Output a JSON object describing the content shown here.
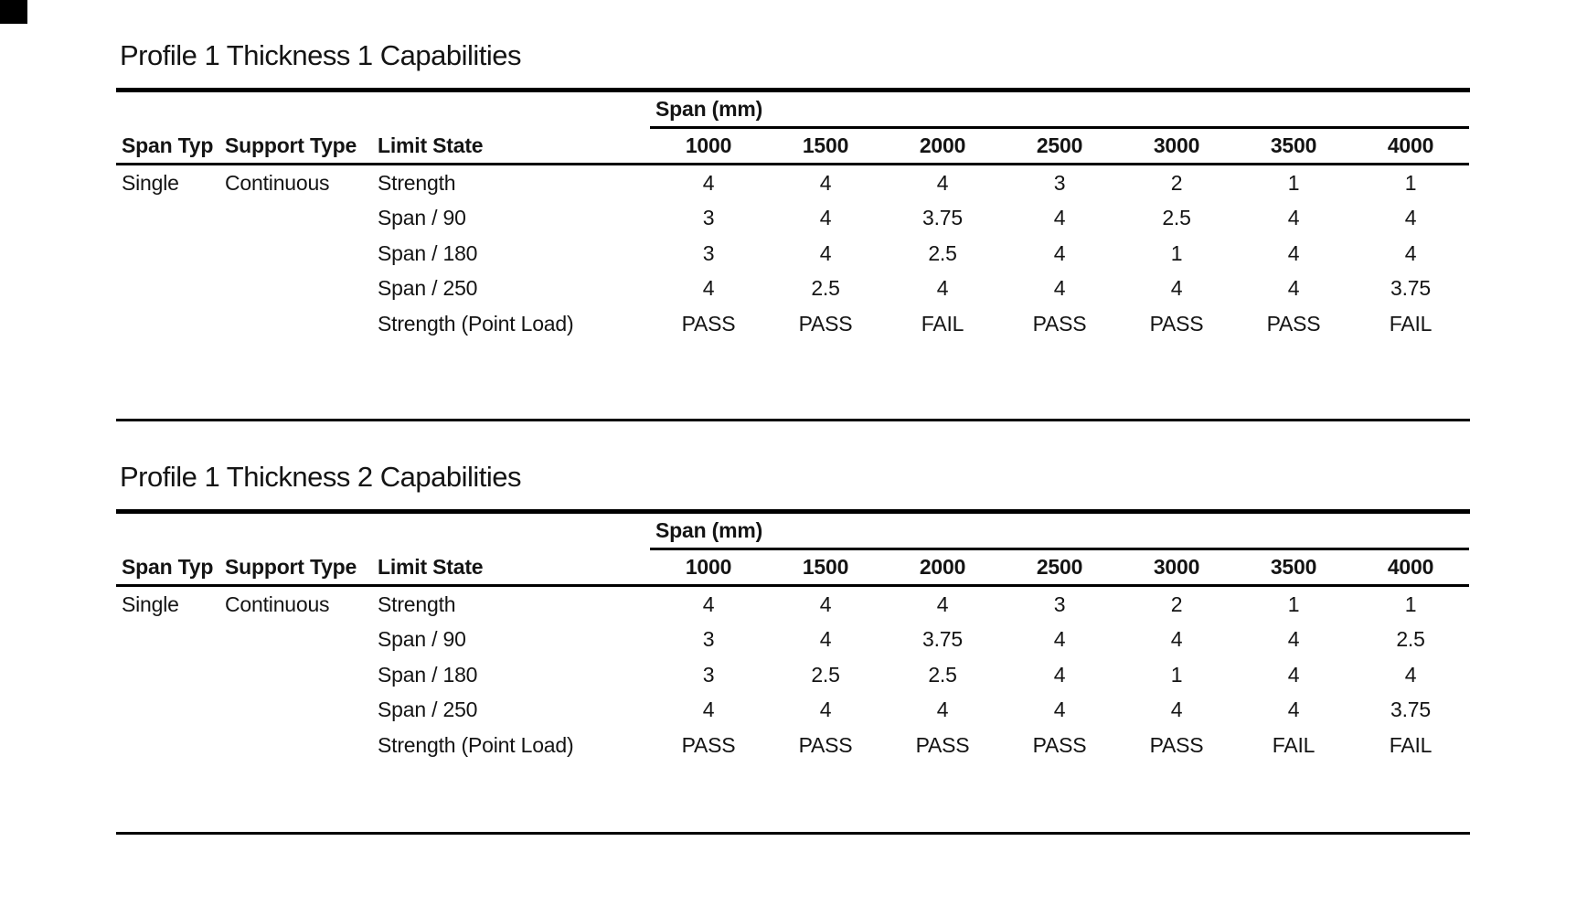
{
  "page": {
    "background": "#ffffff",
    "text_color": "#141414",
    "rule_color": "#000000"
  },
  "corner_mark": {
    "color": "#000000"
  },
  "tables": [
    {
      "title": "Profile 1 Thickness 1 Capabilities",
      "span_group_header": "Span (mm)",
      "col_headers": {
        "span_type": "Span Type",
        "support_type": "Support Type",
        "limit_state": "Limit State"
      },
      "span_columns": [
        "1000",
        "1500",
        "2000",
        "2500",
        "3000",
        "3500",
        "4000"
      ],
      "span_type": "Single",
      "support_type": "Continuous",
      "rows": [
        {
          "limit_state": "Strength",
          "values": [
            "4",
            "4",
            "4",
            "3",
            "2",
            "1",
            "1"
          ]
        },
        {
          "limit_state": "Span / 90",
          "values": [
            "3",
            "4",
            "3.75",
            "4",
            "2.5",
            "4",
            "4"
          ]
        },
        {
          "limit_state": "Span / 180",
          "values": [
            "3",
            "4",
            "2.5",
            "4",
            "1",
            "4",
            "4"
          ]
        },
        {
          "limit_state": "Span / 250",
          "values": [
            "4",
            "2.5",
            "4",
            "4",
            "4",
            "4",
            "3.75"
          ]
        },
        {
          "limit_state": "Strength (Point Load)",
          "values": [
            "PASS",
            "PASS",
            "FAIL",
            "PASS",
            "PASS",
            "PASS",
            "FAIL"
          ]
        }
      ]
    },
    {
      "title": "Profile 1 Thickness 2 Capabilities",
      "span_group_header": "Span (mm)",
      "col_headers": {
        "span_type": "Span Type",
        "support_type": "Support Type",
        "limit_state": "Limit State"
      },
      "span_columns": [
        "1000",
        "1500",
        "2000",
        "2500",
        "3000",
        "3500",
        "4000"
      ],
      "span_type": "Single",
      "support_type": "Continuous",
      "rows": [
        {
          "limit_state": "Strength",
          "values": [
            "4",
            "4",
            "4",
            "3",
            "2",
            "1",
            "1"
          ]
        },
        {
          "limit_state": "Span / 90",
          "values": [
            "3",
            "4",
            "3.75",
            "4",
            "4",
            "4",
            "2.5"
          ]
        },
        {
          "limit_state": "Span / 180",
          "values": [
            "3",
            "2.5",
            "2.5",
            "4",
            "1",
            "4",
            "4"
          ]
        },
        {
          "limit_state": "Span / 250",
          "values": [
            "4",
            "4",
            "4",
            "4",
            "4",
            "4",
            "3.75"
          ]
        },
        {
          "limit_state": "Strength (Point Load)",
          "values": [
            "PASS",
            "PASS",
            "PASS",
            "PASS",
            "PASS",
            "FAIL",
            "FAIL"
          ]
        }
      ]
    }
  ]
}
